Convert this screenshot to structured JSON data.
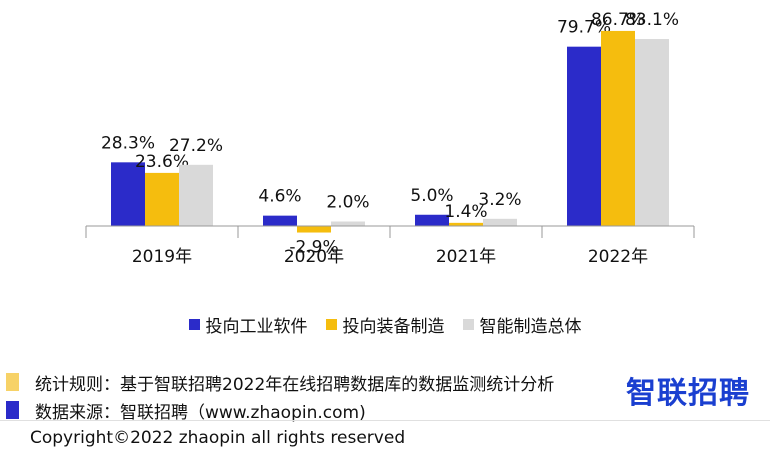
{
  "chart_data": {
    "type": "bar",
    "categories": [
      "2019年",
      "2020年",
      "2021年",
      "2022年"
    ],
    "series": [
      {
        "name": "投向工业软件",
        "values": [
          28.3,
          4.6,
          5.0,
          79.7
        ],
        "labels": [
          "28.3%",
          "4.6%",
          "5.0%",
          "79.7%"
        ]
      },
      {
        "name": "投向装备制造",
        "values": [
          23.6,
          -2.9,
          1.4,
          86.7
        ],
        "labels": [
          "23.6%",
          "-2.9%",
          "1.4%",
          "86.7%"
        ]
      },
      {
        "name": "智能制造总体",
        "values": [
          27.2,
          2.0,
          3.2,
          83.1
        ],
        "labels": [
          "27.2%",
          "2.0%",
          "3.2%",
          "83.1%"
        ]
      }
    ],
    "ylim": [
      -10,
      90
    ],
    "grid": false,
    "legend_position": "bottom"
  },
  "colors": {
    "series": [
      "#2b2bc9",
      "#f5bd0e",
      "#d9d9d9"
    ],
    "axis": "#999999",
    "note_yellow": "#f7d267",
    "note_blue": "#2b2bc9",
    "logo": "#1a3fd0"
  },
  "notes": {
    "rule": "统计规则：基于智联招聘2022年在线招聘数据库的数据监测统计分析",
    "source": "数据来源：智联招聘（www.zhaopin.com)"
  },
  "logo_text": "智联招聘",
  "copyright": "Copyright©2022 zhaopin all rights reserved"
}
